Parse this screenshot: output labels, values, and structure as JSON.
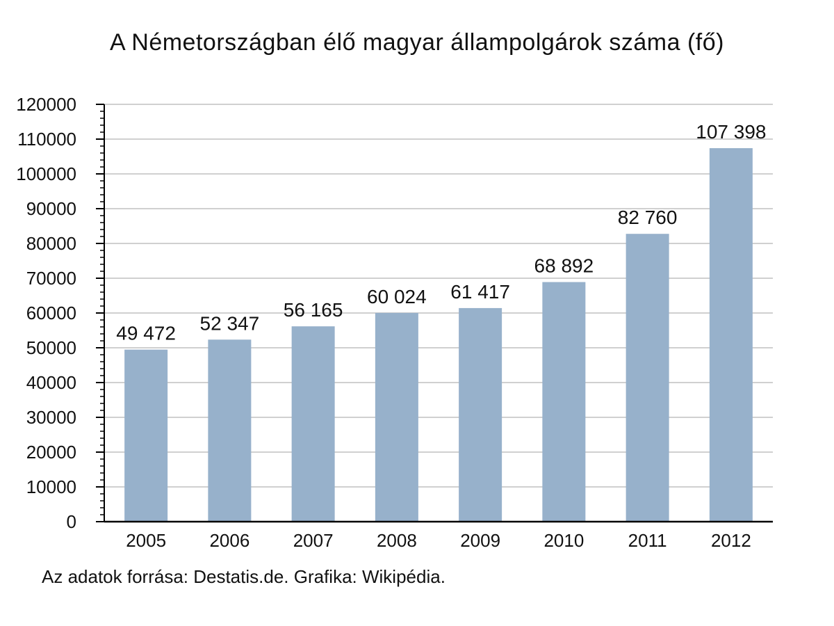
{
  "chart_data": {
    "type": "bar",
    "title": "A Németországban élő magyar állampolgárok száma (fő)",
    "categories": [
      "2005",
      "2006",
      "2007",
      "2008",
      "2009",
      "2010",
      "2011",
      "2012"
    ],
    "values": [
      49472,
      52347,
      56165,
      60024,
      61417,
      68892,
      82760,
      107398
    ],
    "data_labels": [
      "49 472",
      "52 347",
      "56 165",
      "60 024",
      "61 417",
      "68 892",
      "82 760",
      "107 398"
    ],
    "yticks": [
      "0",
      "10000",
      "20000",
      "30000",
      "40000",
      "50000",
      "60000",
      "70000",
      "80000",
      "90000",
      "100000",
      "110000",
      "120000"
    ],
    "ylim": [
      0,
      120000
    ],
    "ystep": 10000,
    "yminor": 2000,
    "xlabel": "",
    "ylabel": "",
    "grid": true,
    "legend": "none",
    "bar_color": "#97b1cb",
    "grid_color": "#d0d0d0",
    "axis_color": "#000000"
  },
  "footnote": "Az adatok forrása: Destatis.de. Grafika: Wikipédia."
}
